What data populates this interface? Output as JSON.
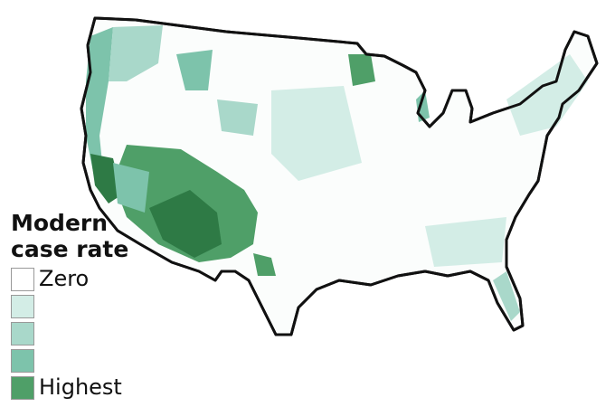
{
  "legend": {
    "title_line1": "Modern",
    "title_line2": "case rate",
    "items": [
      {
        "label": "Zero",
        "color": "#ffffff"
      },
      {
        "label": "",
        "color": "#d3ede6"
      },
      {
        "label": "",
        "color": "#a9d8ca"
      },
      {
        "label": "",
        "color": "#7dc3ab"
      },
      {
        "label": "Highest",
        "color": "#4f9f68"
      }
    ]
  },
  "map": {
    "border_color": "#111111",
    "darkest_color": "#2e7a45"
  }
}
